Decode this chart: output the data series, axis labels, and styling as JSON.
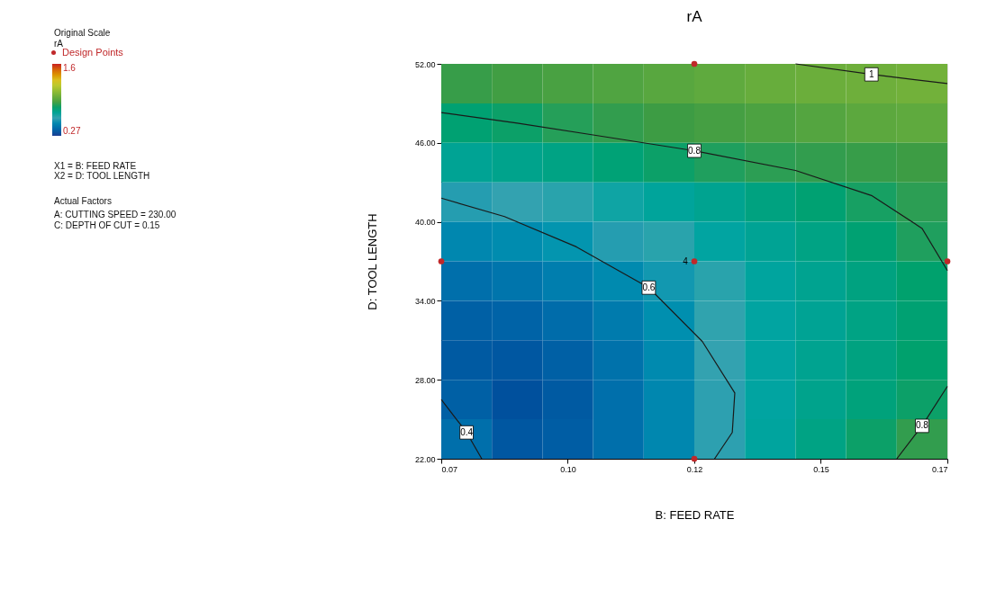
{
  "chart_data": {
    "type": "heatmap",
    "title": "rA",
    "xlabel": "B: FEED RATE",
    "ylabel": "D: TOOL LENGTH",
    "legend_title": "rA",
    "legend": "left",
    "grid": false,
    "x": [
      0.075,
      0.085,
      0.095,
      0.105,
      0.115,
      0.125,
      0.135,
      0.145,
      0.155,
      0.165
    ],
    "y": [
      50.5,
      47.5,
      44.5,
      41.5,
      38.5,
      35.5,
      32.5,
      29.5,
      26.5,
      23.5
    ],
    "cells": [
      [
        0.86,
        0.88,
        0.9,
        0.92,
        0.94,
        0.96,
        0.98,
        0.99,
        1.0,
        1.01
      ],
      [
        0.78,
        0.8,
        0.83,
        0.85,
        0.87,
        0.89,
        0.91,
        0.93,
        0.95,
        0.96
      ],
      [
        0.7,
        0.72,
        0.74,
        0.77,
        0.8,
        0.82,
        0.84,
        0.85,
        0.86,
        0.87
      ],
      [
        0.58,
        0.6,
        0.62,
        0.65,
        0.68,
        0.71,
        0.75,
        0.78,
        0.81,
        0.84
      ],
      [
        0.5,
        0.52,
        0.55,
        0.58,
        0.62,
        0.66,
        0.7,
        0.74,
        0.78,
        0.82
      ],
      [
        0.42,
        0.44,
        0.47,
        0.51,
        0.56,
        0.62,
        0.67,
        0.71,
        0.75,
        0.79
      ],
      [
        0.37,
        0.38,
        0.41,
        0.46,
        0.53,
        0.61,
        0.66,
        0.7,
        0.74,
        0.78
      ],
      [
        0.35,
        0.34,
        0.37,
        0.43,
        0.51,
        0.6,
        0.66,
        0.71,
        0.75,
        0.79
      ],
      [
        0.37,
        0.32,
        0.35,
        0.42,
        0.5,
        0.59,
        0.66,
        0.72,
        0.76,
        0.8
      ],
      [
        0.42,
        0.34,
        0.36,
        0.42,
        0.5,
        0.59,
        0.67,
        0.74,
        0.8,
        0.85
      ]
    ],
    "clim": [
      0.27,
      1.6
    ],
    "cticks": [
      1.6,
      0.27
    ],
    "xlim": [
      0.07,
      0.17
    ],
    "xticks": [
      0.07,
      {
        "value": 0.095,
        "label": "0.10"
      },
      0.12,
      {
        "value": 0.145,
        "label": "0.15"
      },
      0.17
    ],
    "ylim": [
      22,
      52
    ],
    "yticks": [
      {
        "value": 22,
        "label": "22.00"
      },
      {
        "value": 28,
        "label": "28.00"
      },
      {
        "value": 34,
        "label": "34.00"
      },
      {
        "value": 40,
        "label": "40.00"
      },
      {
        "value": 46,
        "label": "46.00"
      },
      {
        "value": 52,
        "label": "52.00"
      }
    ],
    "series": [
      {
        "type": "line",
        "color": "#1a1a1a",
        "x": [
          0.14,
          0.155,
          0.17
        ],
        "values": [
          52,
          51.2,
          50.5
        ]
      },
      {
        "type": "line",
        "color": "#1a1a1a",
        "x": [
          0.07,
          0.085,
          0.1,
          0.12,
          0.14,
          0.155,
          0.165,
          0.17
        ],
        "values": [
          48.3,
          47.5,
          46.6,
          45.4,
          43.9,
          42,
          39.5,
          36.3
        ]
      },
      {
        "type": "line",
        "color": "#1a1a1a",
        "x": [
          0.16,
          0.165,
          0.17
        ],
        "values": [
          22,
          24.5,
          27.5
        ]
      },
      {
        "type": "line",
        "color": "#1a1a1a",
        "x": [
          0.07,
          0.0825,
          0.0967,
          0.111,
          0.1216,
          0.128,
          0.1275,
          0.124
        ],
        "values": [
          41.8,
          40.4,
          38.1,
          35,
          30.9,
          27,
          24,
          22
        ]
      },
      {
        "type": "line",
        "color": "#1a1a1a",
        "x": [
          0.07,
          0.075,
          0.078
        ],
        "values": [
          26.5,
          24,
          22
        ]
      },
      {
        "type": "scatter",
        "name": "Design Points",
        "color": "#c0282a",
        "marker": "circle",
        "x": [
          0.07,
          0.12,
          0.12,
          0.12,
          0.17
        ],
        "values": [
          37,
          52,
          37,
          22,
          37
        ]
      }
    ],
    "annotations": [
      "Original Scale",
      "X1 = B: FEED RATE",
      "X2 = D: TOOL LENGTH",
      "Actual Factors",
      "A: CUTTING SPEED = 230.00",
      "C: DEPTH OF CUT = 0.15",
      {
        "text": "1",
        "x": 0.155,
        "y": 51.2
      },
      {
        "text": "0.8",
        "x": 0.12,
        "y": 45.4
      },
      {
        "text": "0.8",
        "x": 0.165,
        "y": 24.5
      },
      {
        "text": "0.6",
        "x": 0.111,
        "y": 35
      },
      {
        "text": "4",
        "x": 0.12,
        "y": 37
      },
      {
        "text": "0.4",
        "x": 0.075,
        "y": 24
      }
    ]
  }
}
